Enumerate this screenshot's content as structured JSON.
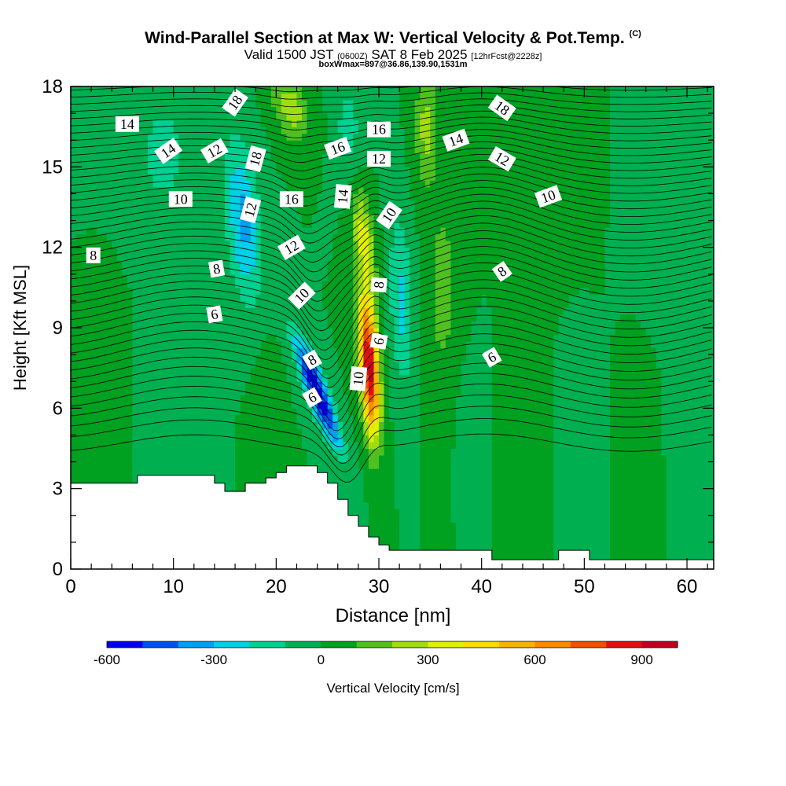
{
  "header": {
    "title": "Wind-Parallel Section at Max W: Vertical Velocity & Pot.Temp.",
    "title_mark": "(C)",
    "valid_prefix": "Valid 1500 JST",
    "valid_utc": "(0600Z)",
    "valid_date": "SAT 8 Feb 2025",
    "forecast": "[12hrFcst@2228z]",
    "box_info": "boxWmax=897@36.86,139.90,1531m"
  },
  "chart_data": {
    "type": "heatmap",
    "xlabel": "Distance [nm]",
    "ylabel": "Height [Kft MSL]",
    "xlim": [
      0,
      62.6
    ],
    "ylim": [
      0,
      18
    ],
    "x_ticks": [
      0,
      10,
      20,
      30,
      40,
      50,
      60
    ],
    "y_ticks": [
      0,
      3,
      6,
      9,
      12,
      15,
      18
    ],
    "colorbar": {
      "label": "Vertical Velocity [cm/s]",
      "ticks": [
        -600,
        -300,
        0,
        300,
        600,
        900
      ],
      "range": [
        -600,
        1000
      ],
      "step": 100,
      "colors": [
        "#0000f0",
        "#0050f0",
        "#00a0f0",
        "#00d0e8",
        "#00d090",
        "#00b050",
        "#00a020",
        "#50c020",
        "#a0dc10",
        "#e0f000",
        "#f8dc00",
        "#f8b400",
        "#f88c00",
        "#f05000",
        "#e01010",
        "#c00020",
        "#a00050",
        "#600090"
      ]
    },
    "features": [
      {
        "name": "downdraft",
        "x": 24.5,
        "z": 6.5,
        "w": -600
      },
      {
        "name": "updraft",
        "x": 29.0,
        "z": 7.5,
        "w": 897
      },
      {
        "name": "upper_updraft",
        "x": 21.5,
        "z": 17.2,
        "w": 250
      },
      {
        "name": "upper_downdraft",
        "x": 17.0,
        "z": 13.0,
        "w": -350
      }
    ],
    "terrain_profile": [
      [
        0,
        3.2
      ],
      [
        6.5,
        3.2
      ],
      [
        6.5,
        3.5
      ],
      [
        14,
        3.5
      ],
      [
        14,
        3.2
      ],
      [
        15,
        3.2
      ],
      [
        15,
        2.9
      ],
      [
        17,
        2.9
      ],
      [
        17,
        3.2
      ],
      [
        19,
        3.2
      ],
      [
        19,
        3.4
      ],
      [
        20,
        3.4
      ],
      [
        20,
        3.6
      ],
      [
        21,
        3.6
      ],
      [
        21,
        3.85
      ],
      [
        24,
        3.85
      ],
      [
        24,
        3.6
      ],
      [
        25,
        3.6
      ],
      [
        25,
        3.2
      ],
      [
        26,
        3.2
      ],
      [
        26,
        2.6
      ],
      [
        27,
        2.6
      ],
      [
        27,
        2.0
      ],
      [
        28,
        2.0
      ],
      [
        28,
        1.6
      ],
      [
        29,
        1.6
      ],
      [
        29,
        1.2
      ],
      [
        30,
        1.2
      ],
      [
        30,
        0.9
      ],
      [
        31,
        0.9
      ],
      [
        31,
        0.7
      ],
      [
        41,
        0.7
      ],
      [
        41,
        0.35
      ],
      [
        47.5,
        0.35
      ],
      [
        47.5,
        0.7
      ],
      [
        50.5,
        0.7
      ],
      [
        50.5,
        0.35
      ],
      [
        62.6,
        0.35
      ]
    ],
    "theta_contours": {
      "levels": [
        "6",
        "8",
        "10",
        "12",
        "14",
        "16",
        "18"
      ],
      "labels": [
        {
          "text": "14",
          "x": 5.5,
          "z": 16.6,
          "rot": 0
        },
        {
          "text": "14",
          "x": 9.5,
          "z": 15.6,
          "rot": -35
        },
        {
          "text": "12",
          "x": 14,
          "z": 15.6,
          "rot": -30
        },
        {
          "text": "18",
          "x": 16,
          "z": 17.4,
          "rot": -55
        },
        {
          "text": "18",
          "x": 18,
          "z": 15.3,
          "rot": -75
        },
        {
          "text": "12",
          "x": 17.5,
          "z": 13.4,
          "rot": -75
        },
        {
          "text": "10",
          "x": 10.7,
          "z": 13.8,
          "rot": 0
        },
        {
          "text": "8",
          "x": 2.2,
          "z": 11.7,
          "rot": 0
        },
        {
          "text": "8",
          "x": 14.2,
          "z": 11.2,
          "rot": -10
        },
        {
          "text": "6",
          "x": 14,
          "z": 9.5,
          "rot": -10
        },
        {
          "text": "16",
          "x": 21.5,
          "z": 13.8,
          "rot": 0
        },
        {
          "text": "12",
          "x": 21.5,
          "z": 12.0,
          "rot": -30
        },
        {
          "text": "10",
          "x": 22.5,
          "z": 10.2,
          "rot": -45
        },
        {
          "text": "8",
          "x": 23.5,
          "z": 7.8,
          "rot": -30
        },
        {
          "text": "6",
          "x": 23.5,
          "z": 6.4,
          "rot": -30
        },
        {
          "text": "16",
          "x": 26,
          "z": 15.7,
          "rot": -20
        },
        {
          "text": "14",
          "x": 26.5,
          "z": 13.9,
          "rot": -85
        },
        {
          "text": "16",
          "x": 30,
          "z": 16.4,
          "rot": 0
        },
        {
          "text": "12",
          "x": 30,
          "z": 15.3,
          "rot": 0
        },
        {
          "text": "10",
          "x": 31,
          "z": 13.2,
          "rot": -55
        },
        {
          "text": "8",
          "x": 30,
          "z": 10.6,
          "rot": -85
        },
        {
          "text": "6",
          "x": 30,
          "z": 8.5,
          "rot": -80
        },
        {
          "text": "10",
          "x": 28,
          "z": 7.1,
          "rot": -85
        },
        {
          "text": "14",
          "x": 37.5,
          "z": 16.0,
          "rot": -20
        },
        {
          "text": "18",
          "x": 42,
          "z": 17.2,
          "rot": 35
        },
        {
          "text": "12",
          "x": 42,
          "z": 15.3,
          "rot": 30
        },
        {
          "text": "10",
          "x": 46.5,
          "z": 13.9,
          "rot": -20
        },
        {
          "text": "8",
          "x": 42,
          "z": 11.1,
          "rot": -35
        },
        {
          "text": "6",
          "x": 41,
          "z": 7.9,
          "rot": -30
        }
      ]
    }
  }
}
